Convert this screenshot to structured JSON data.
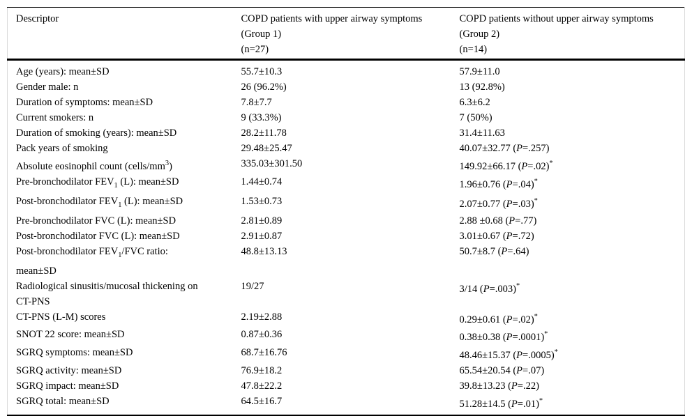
{
  "table": {
    "headers": [
      [
        {
          "t": "Descriptor"
        }
      ],
      [
        {
          "t": "COPD patients with upper airway symptoms"
        },
        {
          "br": true
        },
        {
          "t": "(Group 1)"
        },
        {
          "br": true
        },
        {
          "t": "(n=27)"
        }
      ],
      [
        {
          "t": "COPD patients without upper airway symptoms"
        },
        {
          "br": true
        },
        {
          "t": "(Group 2)"
        },
        {
          "br": true
        },
        {
          "t": "(n=14)"
        }
      ]
    ],
    "rows": [
      {
        "cells": [
          [
            {
              "t": "Age (years): mean±SD"
            }
          ],
          [
            {
              "t": "55.7±10.3"
            }
          ],
          [
            {
              "t": "57.9±11.0"
            }
          ]
        ]
      },
      {
        "cells": [
          [
            {
              "t": "Gender male: n"
            }
          ],
          [
            {
              "t": "26 (96.2%)"
            }
          ],
          [
            {
              "t": "13 (92.8%)"
            }
          ]
        ]
      },
      {
        "cells": [
          [
            {
              "t": "Duration of symptoms: mean±SD"
            }
          ],
          [
            {
              "t": "7.8±7.7"
            }
          ],
          [
            {
              "t": "6.3±6.2"
            }
          ]
        ]
      },
      {
        "cells": [
          [
            {
              "t": "Current smokers: n"
            }
          ],
          [
            {
              "t": "9 (33.3%)"
            }
          ],
          [
            {
              "t": "7 (50%)"
            }
          ]
        ]
      },
      {
        "cells": [
          [
            {
              "t": "Duration of smoking (years): mean±SD"
            }
          ],
          [
            {
              "t": "28.2±11.78"
            }
          ],
          [
            {
              "t": "31.4±11.63"
            }
          ]
        ]
      },
      {
        "cells": [
          [
            {
              "t": "Pack years of smoking"
            }
          ],
          [
            {
              "t": "29.48±25.47"
            }
          ],
          [
            {
              "t": "40.07±32.77 ("
            },
            {
              "t": "P",
              "s": "i"
            },
            {
              "t": "=.257)"
            }
          ]
        ]
      },
      {
        "cells": [
          [
            {
              "t": "Absolute eosinophil count (cells/mm"
            },
            {
              "t": "3",
              "s": "sup"
            },
            {
              "t": ")"
            }
          ],
          [
            {
              "t": "335.03±301.50"
            }
          ],
          [
            {
              "t": "149.92±66.17 ("
            },
            {
              "t": "P",
              "s": "i"
            },
            {
              "t": "=.02)"
            },
            {
              "t": "*",
              "s": "sup"
            }
          ]
        ]
      },
      {
        "cells": [
          [
            {
              "t": "Pre-bronchodilator FEV"
            },
            {
              "t": "1",
              "s": "sub"
            },
            {
              "t": " (L): mean±SD"
            }
          ],
          [
            {
              "t": "1.44±0.74"
            }
          ],
          [
            {
              "t": "1.96±0.76 ("
            },
            {
              "t": "P",
              "s": "i"
            },
            {
              "t": "=.04)"
            },
            {
              "t": "*",
              "s": "sup"
            }
          ]
        ]
      },
      {
        "cells": [
          [
            {
              "t": "Post-bronchodilator FEV"
            },
            {
              "t": "1",
              "s": "sub"
            },
            {
              "t": " (L): mean±SD"
            }
          ],
          [
            {
              "t": "1.53±0.73"
            }
          ],
          [
            {
              "t": "2.07±0.77 ("
            },
            {
              "t": "P",
              "s": "i"
            },
            {
              "t": "=.03)"
            },
            {
              "t": "*",
              "s": "sup"
            }
          ]
        ]
      },
      {
        "cells": [
          [
            {
              "t": "Pre-bronchodilator FVC (L): mean±SD"
            }
          ],
          [
            {
              "t": "2.81±0.89"
            }
          ],
          [
            {
              "t": "2.88 ±0.68 ("
            },
            {
              "t": "P",
              "s": "i"
            },
            {
              "t": "=.77)"
            }
          ]
        ]
      },
      {
        "cells": [
          [
            {
              "t": "Post-bronchodilator FVC (L): mean±SD"
            }
          ],
          [
            {
              "t": "2.91±0.87"
            }
          ],
          [
            {
              "t": "3.01±0.67 ("
            },
            {
              "t": "P",
              "s": "i"
            },
            {
              "t": "=.72)"
            }
          ]
        ]
      },
      {
        "cells": [
          [
            {
              "t": "Post-bronchodilator FEV"
            },
            {
              "t": "1",
              "s": "sub"
            },
            {
              "t": "/FVC ratio:"
            },
            {
              "br": true
            },
            {
              "t": "mean±SD"
            }
          ],
          [
            {
              "t": "48.8±13.13"
            }
          ],
          [
            {
              "t": "50.7±8.7 ("
            },
            {
              "t": "P",
              "s": "i"
            },
            {
              "t": "=.64)"
            }
          ]
        ]
      },
      {
        "cells": [
          [
            {
              "t": "Radiological sinusitis/mucosal thickening on"
            },
            {
              "br": true
            },
            {
              "t": "CT-PNS"
            }
          ],
          [
            {
              "t": "19/27"
            }
          ],
          [
            {
              "t": "3/14 ("
            },
            {
              "t": "P",
              "s": "i"
            },
            {
              "t": "=.003)"
            },
            {
              "t": "*",
              "s": "sup"
            }
          ]
        ]
      },
      {
        "cells": [
          [
            {
              "t": "CT-PNS (L-M) scores"
            }
          ],
          [
            {
              "t": "2.19±2.88"
            }
          ],
          [
            {
              "t": "0.29±0.61 ("
            },
            {
              "t": "P",
              "s": "i"
            },
            {
              "t": "=.02)"
            },
            {
              "t": "*",
              "s": "sup"
            }
          ]
        ]
      },
      {
        "cells": [
          [
            {
              "t": "SNOT 22 score: mean±SD"
            }
          ],
          [
            {
              "t": "0.87±0.36"
            }
          ],
          [
            {
              "t": "0.38±0.38 ("
            },
            {
              "t": "P",
              "s": "i"
            },
            {
              "t": "=.0001)"
            },
            {
              "t": "*",
              "s": "sup"
            }
          ]
        ]
      },
      {
        "cells": [
          [
            {
              "t": "SGRQ symptoms: mean±SD"
            }
          ],
          [
            {
              "t": "68.7±16.76"
            }
          ],
          [
            {
              "t": "48.46±15.37 ("
            },
            {
              "t": "P",
              "s": "i"
            },
            {
              "t": "=.0005)"
            },
            {
              "t": "*",
              "s": "sup"
            }
          ]
        ]
      },
      {
        "cells": [
          [
            {
              "t": "SGRQ activity: mean±SD"
            }
          ],
          [
            {
              "t": "76.9±18.2"
            }
          ],
          [
            {
              "t": "65.54±20.54 ("
            },
            {
              "t": "P",
              "s": "i"
            },
            {
              "t": "=.07)"
            }
          ]
        ]
      },
      {
        "cells": [
          [
            {
              "t": "SGRQ impact: mean±SD"
            }
          ],
          [
            {
              "t": "47.8±22.2"
            }
          ],
          [
            {
              "t": "39.8±13.23 ("
            },
            {
              "t": "P",
              "s": "i"
            },
            {
              "t": "=.22)"
            }
          ]
        ]
      },
      {
        "cells": [
          [
            {
              "t": "SGRQ total: mean±SD"
            }
          ],
          [
            {
              "t": "64.5±16.7"
            }
          ],
          [
            {
              "t": "51.28±14.5 ("
            },
            {
              "t": "P",
              "s": "i"
            },
            {
              "t": "=.01)"
            },
            {
              "t": "*",
              "s": "sup"
            }
          ]
        ]
      }
    ]
  }
}
